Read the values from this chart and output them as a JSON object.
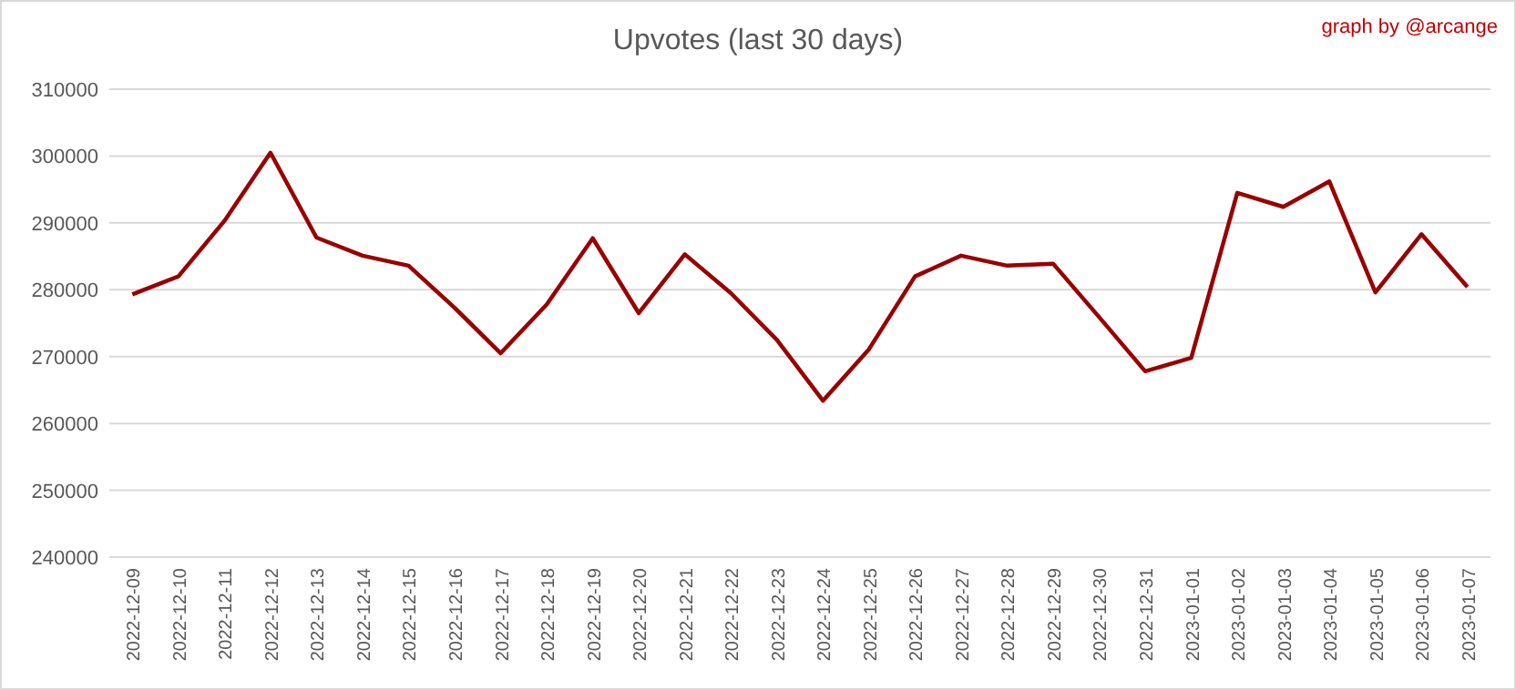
{
  "chart_data": {
    "type": "line",
    "title": "Upvotes (last 30 days)",
    "annotations": [
      "graph by @arcange"
    ],
    "categories": [
      "2022-12-09",
      "2022-12-10",
      "2022-12-11",
      "2022-12-12",
      "2022-12-13",
      "2022-12-14",
      "2022-12-15",
      "2022-12-16",
      "2022-12-17",
      "2022-12-18",
      "2022-12-19",
      "2022-12-20",
      "2022-12-21",
      "2022-12-22",
      "2022-12-23",
      "2022-12-24",
      "2022-12-25",
      "2022-12-26",
      "2022-12-27",
      "2022-12-28",
      "2022-12-29",
      "2022-12-30",
      "2022-12-31",
      "2023-01-01",
      "2023-01-02",
      "2023-01-03",
      "2023-01-04",
      "2023-01-05",
      "2023-01-06",
      "2023-01-07"
    ],
    "series": [
      {
        "color": "#990000",
        "values": [
          279300,
          282000,
          290300,
          300500,
          287800,
          285100,
          283600,
          277300,
          270500,
          277800,
          287700,
          276500,
          285300,
          279500,
          272500,
          263400,
          271100,
          282000,
          285100,
          283600,
          283900,
          275900,
          267800,
          269800,
          294500,
          292400,
          296200,
          279600,
          288300,
          280400
        ]
      }
    ],
    "ylim": [
      240000,
      310000
    ],
    "yticks": [
      240000,
      250000,
      260000,
      270000,
      280000,
      290000,
      300000,
      310000
    ],
    "grid": "y",
    "marker": "none",
    "line_style": "solid"
  }
}
